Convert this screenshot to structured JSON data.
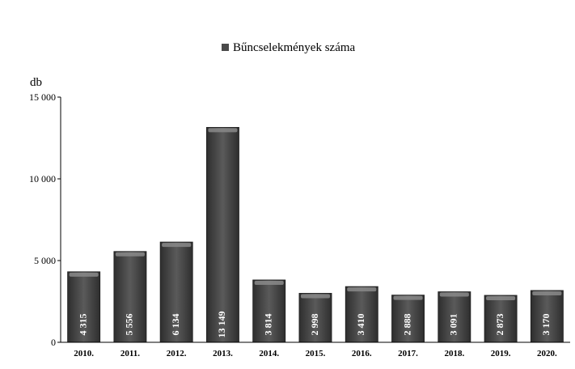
{
  "chart_data": {
    "type": "bar",
    "categories": [
      "2010.",
      "2011.",
      "2012.",
      "2013.",
      "2014.",
      "2015.",
      "2016.",
      "2017.",
      "2018.",
      "2019.",
      "2020."
    ],
    "series": [
      {
        "name": "Bűncselekmények száma",
        "values": [
          4315,
          5556,
          6134,
          13149,
          3814,
          2998,
          3410,
          2888,
          3091,
          2873,
          3170
        ],
        "data_labels": [
          "4 315",
          "5 556",
          "6 134",
          "13 149",
          "3 814",
          "2 998",
          "3 410",
          "2 888",
          "3 091",
          "2 873",
          "3 170"
        ]
      }
    ],
    "ylabel": "db",
    "xlabel": "",
    "ylim": [
      0,
      15000
    ],
    "yticks": [
      0,
      5000,
      10000,
      15000
    ],
    "ytick_labels": [
      "0",
      "5 000",
      "10 000",
      "15 000"
    ],
    "grid": false,
    "legend_position": "top-center",
    "colors": {
      "bar": "#4a4a4a",
      "bar_highlight": "#8a8a8a",
      "axis": "#000000"
    }
  }
}
